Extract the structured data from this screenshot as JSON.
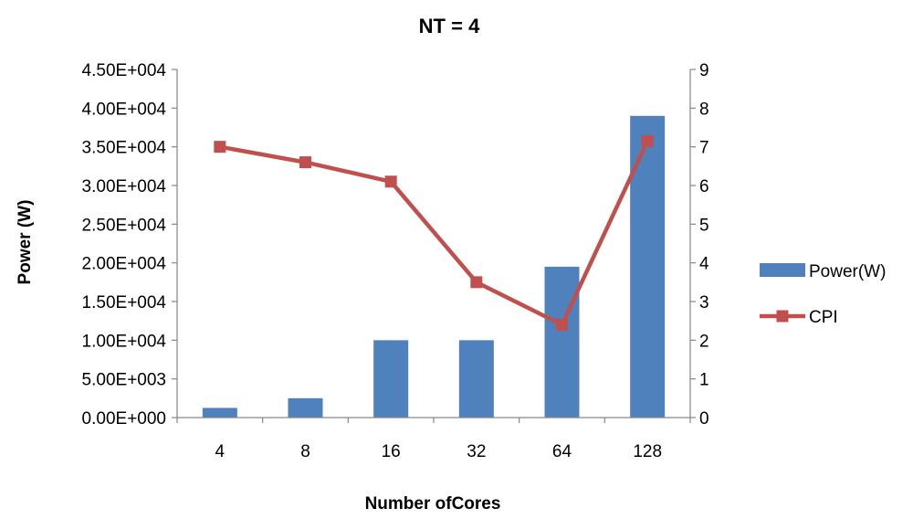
{
  "chart_data": {
    "type": "bar",
    "title": "NT = 4",
    "xlabel": "Number ofCores",
    "ylabel": "Power (W)",
    "y2label": "",
    "categories": [
      "4",
      "8",
      "16",
      "32",
      "64",
      "128"
    ],
    "y_ticks": [
      "0.00E+000",
      "5.00E+003",
      "1.00E+004",
      "1.50E+004",
      "2.00E+004",
      "2.50E+004",
      "3.00E+004",
      "3.50E+004",
      "4.00E+004",
      "4.50E+004"
    ],
    "y2_ticks": [
      "0",
      "1",
      "2",
      "3",
      "4",
      "5",
      "6",
      "7",
      "8",
      "9"
    ],
    "ylim": [
      0,
      45000
    ],
    "y2lim": [
      0,
      9
    ],
    "grid": false,
    "legend_position": "right",
    "series": [
      {
        "name": "Power(W)",
        "type": "bar",
        "axis": "left",
        "color": "#4F81BD",
        "values": [
          1250,
          2500,
          10000,
          10000,
          19500,
          39000
        ]
      },
      {
        "name": "CPI",
        "type": "line",
        "axis": "right",
        "color": "#C0504D",
        "marker": "square",
        "values": [
          7.0,
          6.6,
          6.1,
          3.5,
          2.4,
          7.15
        ]
      }
    ]
  }
}
